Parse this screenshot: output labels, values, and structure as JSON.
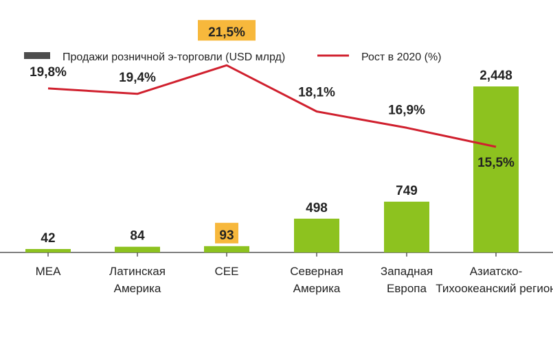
{
  "chart_data": {
    "type": "bar",
    "categories": [
      [
        "MEA"
      ],
      [
        "Латинская",
        "Америка"
      ],
      [
        "CEE"
      ],
      [
        "Северная",
        "Америка"
      ],
      [
        "Западная",
        "Европа"
      ],
      [
        "Азиатско-",
        "Тихоокеанский регион"
      ]
    ],
    "series": [
      {
        "name": "Продажи розничной э-торговли (USD млрд)",
        "type": "bar",
        "values": [
          42,
          84,
          93,
          498,
          749,
          2448
        ],
        "labels": [
          "42",
          "84",
          "93",
          "498",
          "749",
          "2,448"
        ]
      },
      {
        "name": "Рост в 2020 (%)",
        "type": "line",
        "values": [
          19.8,
          19.4,
          21.5,
          18.1,
          16.9,
          15.5
        ],
        "labels": [
          "19,8%",
          "19,4%",
          "21,5%",
          "18,1%",
          "16,9%",
          "15,5%"
        ]
      }
    ],
    "highlight_category_index": 2,
    "colors": {
      "bar": "#8dc21f",
      "line": "#d0202e",
      "legend_bar": "#4d4d4d",
      "highlight": "#f7b83c",
      "axis": "#555555"
    },
    "legend_position": "top",
    "grid": false
  }
}
